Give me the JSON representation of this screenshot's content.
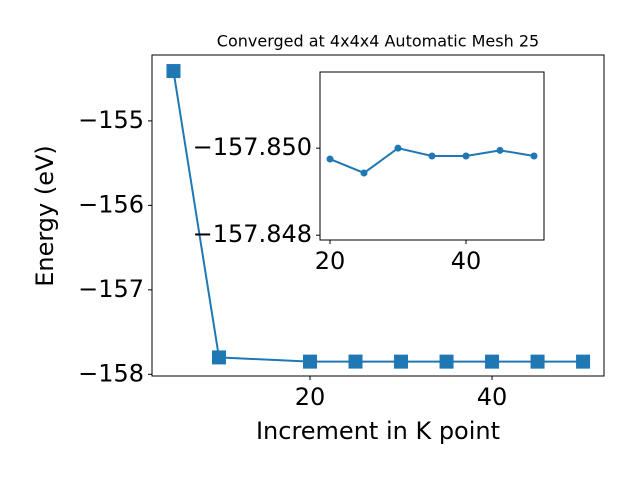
{
  "chart_data": [
    {
      "type": "line",
      "title": "Converged at 4x4x4 Automatic Mesh 25",
      "xlabel": "Increment in K point",
      "ylabel": "Energy (eV)",
      "x": [
        5,
        10,
        20,
        25,
        30,
        35,
        40,
        45,
        50
      ],
      "series": [
        {
          "color": "#1f77b4",
          "marker": "square",
          "values": [
            -154.41,
            -157.8,
            -157.8497,
            -157.8494,
            -157.85,
            -157.8498,
            -157.8498,
            -157.84995,
            -157.8498
          ]
        }
      ],
      "xlim": [
        2.64,
        52.3
      ],
      "xticks": [
        20,
        40
      ],
      "ylim": [
        -158.02,
        -154.22
      ],
      "yticks": [
        {
          "value": -158,
          "label": "−158"
        },
        {
          "value": -157,
          "label": "−157"
        },
        {
          "value": -156,
          "label": "−156"
        },
        {
          "value": -155,
          "label": "−155"
        }
      ]
    },
    {
      "type": "line",
      "x": [
        20,
        25,
        30,
        35,
        40,
        45,
        50
      ],
      "series": [
        {
          "color": "#1f77b4",
          "marker": "circle",
          "values": [
            -157.84975,
            -157.84943,
            -157.85,
            -157.84982,
            -157.84982,
            -157.84995,
            -157.84982
          ]
        }
      ],
      "xlim": [
        18.53,
        51.47
      ],
      "xticks": [
        20,
        40
      ],
      "ylim": [
        -157.84789,
        -157.85175
      ],
      "yticks": [
        {
          "value": -157.848,
          "label": "−157.848"
        },
        {
          "value": -157.85,
          "label": "−157.850"
        }
      ]
    }
  ]
}
